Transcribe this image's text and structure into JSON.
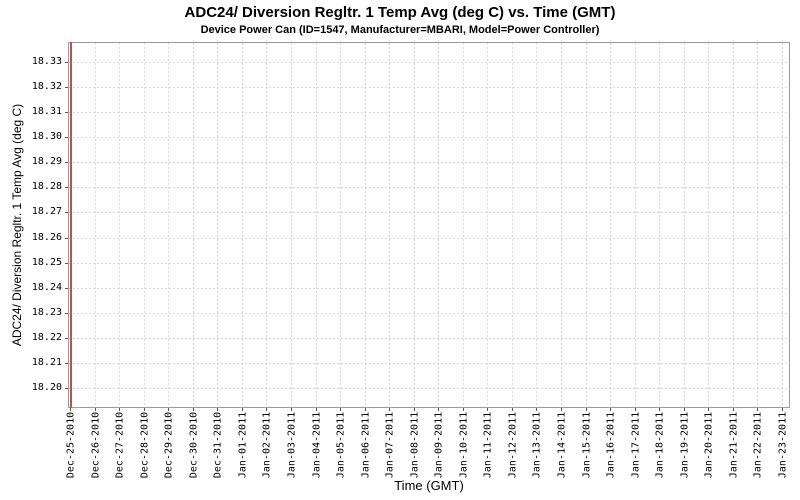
{
  "chart_data": {
    "type": "line",
    "title": "ADC24/ Diversion Regltr. 1 Temp Avg (deg C) vs. Time (GMT)",
    "subtitle": "Device Power Can (ID=1547, Manufacturer=MBARI, Model=Power Controller)",
    "xlabel": "Time (GMT)",
    "ylabel": "ADC24/ Diversion Regltr. 1 Temp Avg (deg C)",
    "x_ticks": [
      "Dec-25-2010",
      "Dec-26-2010",
      "Dec-27-2010",
      "Dec-28-2010",
      "Dec-29-2010",
      "Dec-30-2010",
      "Dec-31-2010",
      "Jan-01-2011",
      "Jan-02-2011",
      "Jan-03-2011",
      "Jan-04-2011",
      "Jan-05-2011",
      "Jan-06-2011",
      "Jan-07-2011",
      "Jan-08-2011",
      "Jan-09-2011",
      "Jan-10-2011",
      "Jan-11-2011",
      "Jan-12-2011",
      "Jan-13-2011",
      "Jan-14-2011",
      "Jan-15-2011",
      "Jan-16-2011",
      "Jan-17-2011",
      "Jan-18-2011",
      "Jan-19-2011",
      "Jan-20-2011",
      "Jan-21-2011",
      "Jan-22-2011",
      "Jan-23-2011"
    ],
    "y_ticks": [
      "18.20",
      "18.21",
      "18.22",
      "18.23",
      "18.24",
      "18.25",
      "18.26",
      "18.27",
      "18.28",
      "18.29",
      "18.30",
      "18.31",
      "18.32",
      "18.33"
    ],
    "ylim": [
      18.192,
      18.338
    ],
    "grid": {
      "show": true,
      "style": "dashed",
      "color": "#dadada"
    },
    "axis": {
      "border_color": "#9b9b9b",
      "tick_color": "#555555",
      "text_color": "#000000"
    },
    "legend": {
      "show": false
    },
    "series": [
      {
        "name": "ADC24/ Diversion Regltr. 1 Temp Avg (deg C)",
        "color": "#c05050",
        "render": "vertical-line",
        "x": "Dec-25-2010",
        "y_range": [
          18.192,
          18.338
        ],
        "note": "All samples cluster at Dec-25-2010, so the series appears as a red vertical line spanning the full y-range at the left edge of the plot."
      }
    ]
  }
}
